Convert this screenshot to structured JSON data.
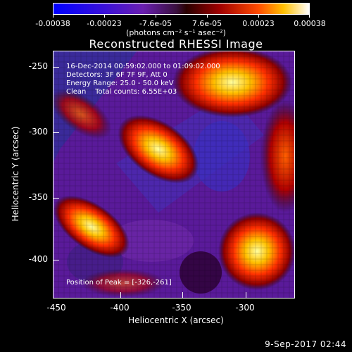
{
  "colorbar": {
    "tick_labels": [
      "-0.00038",
      "-0.00023",
      "-7.6e-05",
      "7.6e-05",
      "0.00023",
      "0.00038"
    ],
    "units": "(photons cm⁻² s⁻¹ asec⁻²)"
  },
  "title": "Reconstructed RHESSI Image",
  "info": {
    "time": "16-Dec-2014 00:59:02.000 to 01:09:02.000",
    "detectors": "Detectors: 3F 6F 7F 9F, Att 0",
    "energy": "Energy Range: 25.0 - 50.0 keV",
    "algorithm": "Clean    Total counts: 6.55E+03"
  },
  "peak": "Position of Peak = [-326,-261]",
  "axes": {
    "xlabel": "Heliocentric X (arcsec)",
    "ylabel": "Heliocentric Y (arcsec)",
    "xticks": [
      "-450",
      "-400",
      "-350",
      "-300"
    ],
    "yticks": [
      "-250",
      "-300",
      "-350",
      "-400"
    ]
  },
  "timestamp": "9-Sep-2017 02:44"
}
